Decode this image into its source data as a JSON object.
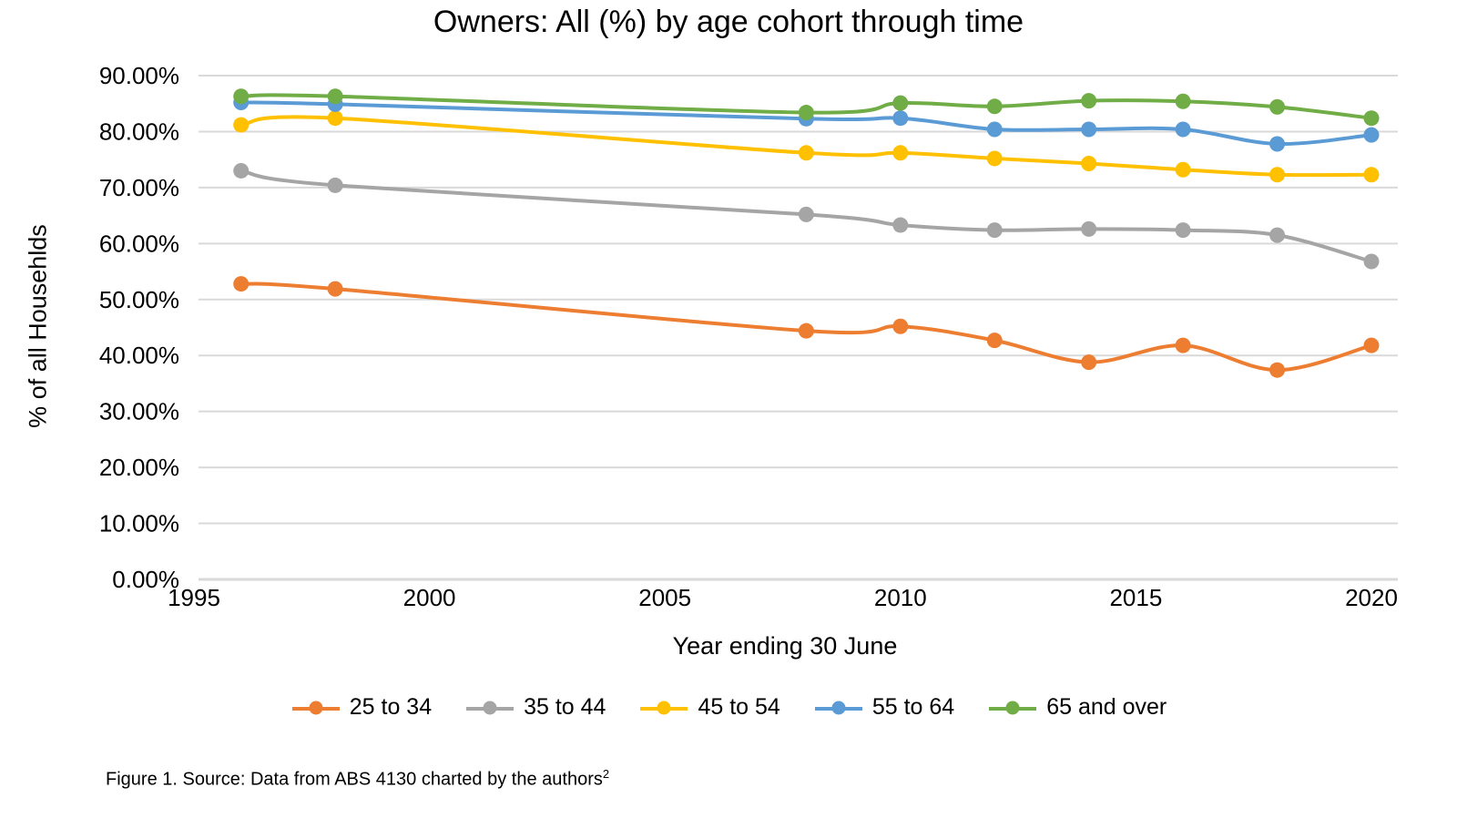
{
  "page": {
    "background": "#ffffff"
  },
  "chart_data": {
    "type": "line",
    "title": "Owners: All (%) by age cohort through time",
    "xlabel": "Year ending 30 June",
    "ylabel": "% of all Househlds",
    "x": [
      1996,
      1998,
      2008,
      2010,
      2012,
      2014,
      2016,
      2018,
      2020
    ],
    "series": [
      {
        "name": "25 to 34",
        "color": "#ED7D31",
        "values": [
          52.8,
          51.9,
          44.4,
          45.2,
          42.7,
          38.8,
          41.8,
          37.4,
          41.8
        ]
      },
      {
        "name": "35 to 44",
        "color": "#A5A5A5",
        "values": [
          73.0,
          70.4,
          65.2,
          63.3,
          62.4,
          62.6,
          62.4,
          61.5,
          56.8
        ]
      },
      {
        "name": "45 to 54",
        "color": "#FFC000",
        "values": [
          81.2,
          82.4,
          76.2,
          76.2,
          75.2,
          74.3,
          73.2,
          72.3,
          72.3
        ]
      },
      {
        "name": "55 to 64",
        "color": "#5B9BD5",
        "values": [
          85.2,
          84.9,
          82.3,
          82.4,
          80.4,
          80.4,
          80.4,
          77.8,
          79.4
        ]
      },
      {
        "name": "65 and over",
        "color": "#70AD47",
        "values": [
          86.3,
          86.3,
          83.4,
          85.1,
          84.5,
          85.5,
          85.4,
          84.4,
          82.4
        ]
      }
    ],
    "ylim": [
      0,
      90
    ],
    "xlim": [
      1995,
      2020
    ],
    "yticks": {
      "values": [
        0,
        10,
        20,
        30,
        40,
        50,
        60,
        70,
        80,
        90
      ],
      "labels": [
        "0.00%",
        "10.00%",
        "20.00%",
        "30.00%",
        "40.00%",
        "50.00%",
        "60.00%",
        "70.00%",
        "80.00%",
        "90.00%"
      ]
    },
    "xticks": {
      "values": [
        1995,
        2000,
        2005,
        2010,
        2015,
        2020
      ],
      "labels": [
        "1995",
        "2000",
        "2005",
        "2010",
        "2015",
        "2020"
      ]
    },
    "grid": "horizontal",
    "gridline_color": "#D9D9D9",
    "text_color": "#000000",
    "legend_position": "bottom",
    "marker": "circle",
    "line_style": "smooth"
  },
  "caption": {
    "text": "Figure 1. Source: Data from ABS 4130 charted by the authors",
    "superscript": "2"
  }
}
